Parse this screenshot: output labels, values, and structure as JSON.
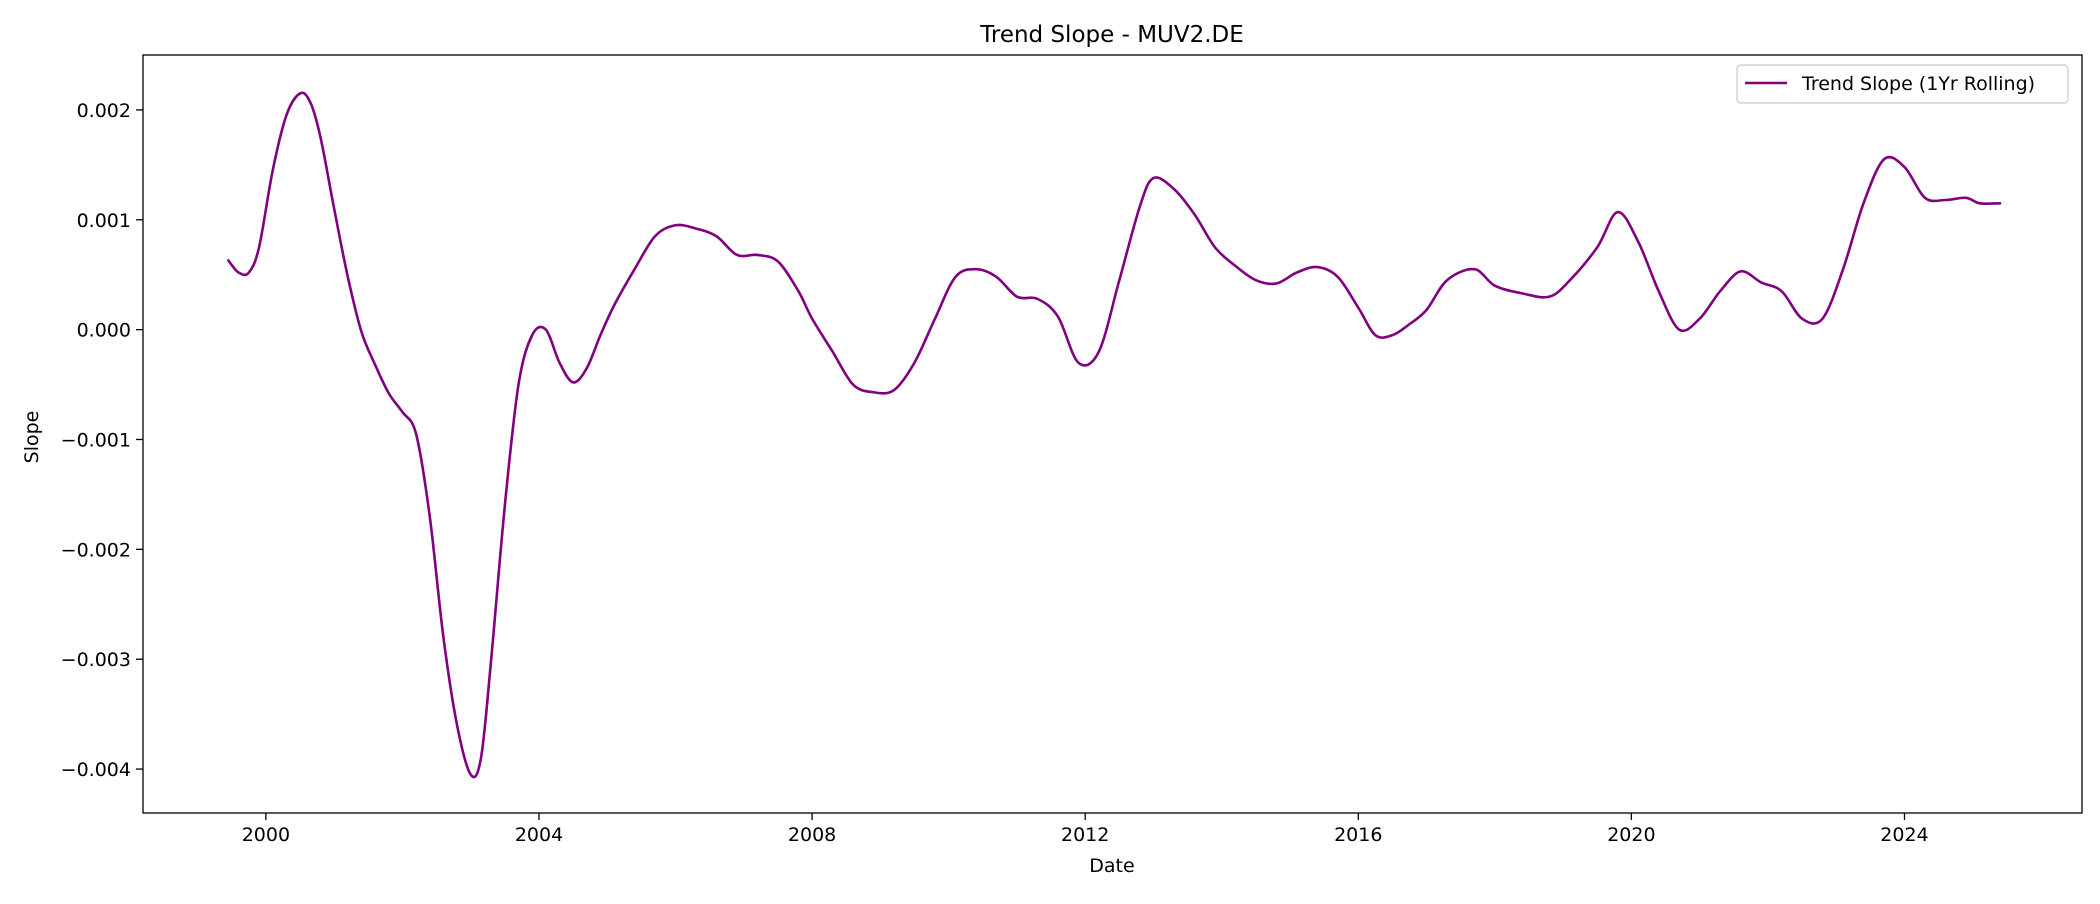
{
  "chart_data": {
    "type": "line",
    "title": "Trend Slope - MUV2.DE",
    "xlabel": "Date",
    "ylabel": "Slope",
    "xlim": [
      1998.2,
      2026.6
    ],
    "ylim": [
      -0.0044,
      0.0025
    ],
    "x_ticks": [
      2000,
      2004,
      2008,
      2012,
      2016,
      2020,
      2024
    ],
    "x_tick_labels": [
      "2000",
      "2004",
      "2008",
      "2012",
      "2016",
      "2020",
      "2024"
    ],
    "y_ticks": [
      0.002,
      0.001,
      0.0,
      -0.001,
      -0.002,
      -0.003,
      -0.004
    ],
    "y_tick_labels": [
      "0.002",
      "0.001",
      "0.000",
      "−0.001",
      "−0.002",
      "−0.003",
      "−0.004"
    ],
    "grid": false,
    "legend_position": "top-right",
    "series": [
      {
        "name": "Trend Slope (1Yr Rolling)",
        "color": "#800080",
        "x": [
          1999.45,
          1999.6,
          1999.75,
          1999.9,
          2000.1,
          2000.3,
          2000.5,
          2000.65,
          2000.8,
          2001.0,
          2001.2,
          2001.4,
          2001.6,
          2001.8,
          2002.0,
          2002.2,
          2002.4,
          2002.6,
          2002.8,
          2003.0,
          2003.15,
          2003.3,
          2003.5,
          2003.7,
          2003.9,
          2004.1,
          2004.3,
          2004.5,
          2004.7,
          2004.9,
          2005.1,
          2005.4,
          2005.7,
          2006.0,
          2006.3,
          2006.6,
          2006.9,
          2007.2,
          2007.5,
          2007.8,
          2008.0,
          2008.3,
          2008.6,
          2008.9,
          2009.2,
          2009.5,
          2009.8,
          2010.1,
          2010.4,
          2010.7,
          2011.0,
          2011.3,
          2011.6,
          2011.9,
          2012.2,
          2012.5,
          2012.8,
          2013.0,
          2013.3,
          2013.6,
          2013.9,
          2014.2,
          2014.5,
          2014.8,
          2015.1,
          2015.4,
          2015.7,
          2016.0,
          2016.25,
          2016.5,
          2016.75,
          2017.0,
          2017.3,
          2017.7,
          2018.0,
          2018.4,
          2018.8,
          2019.1,
          2019.5,
          2019.8,
          2020.1,
          2020.4,
          2020.7,
          2021.0,
          2021.3,
          2021.6,
          2021.9,
          2022.2,
          2022.5,
          2022.8,
          2023.1,
          2023.4,
          2023.7,
          2024.0,
          2024.3,
          2024.6,
          2024.9,
          2025.1,
          2025.4
        ],
        "y": [
          0.00063,
          0.00052,
          0.00052,
          0.00075,
          0.00145,
          0.00195,
          0.00215,
          0.00207,
          0.00175,
          0.0011,
          0.00048,
          -2e-05,
          -0.00032,
          -0.00058,
          -0.00075,
          -0.00095,
          -0.0017,
          -0.0028,
          -0.0036,
          -0.00405,
          -0.0039,
          -0.003,
          -0.0016,
          -0.0005,
          -5e-05,
          0.0,
          -0.0003,
          -0.00048,
          -0.00035,
          -5e-05,
          0.00022,
          0.00055,
          0.00085,
          0.00095,
          0.00092,
          0.00085,
          0.00068,
          0.00068,
          0.00062,
          0.00035,
          0.0001,
          -0.0002,
          -0.0005,
          -0.00057,
          -0.00055,
          -0.0003,
          0.0001,
          0.00048,
          0.00055,
          0.00048,
          0.0003,
          0.00028,
          0.00012,
          -0.0003,
          -0.0002,
          0.00045,
          0.00112,
          0.00138,
          0.00128,
          0.00105,
          0.00075,
          0.00058,
          0.00045,
          0.00042,
          0.00052,
          0.00057,
          0.00048,
          0.0002,
          -5e-05,
          -5e-05,
          5e-05,
          0.00018,
          0.00045,
          0.00055,
          0.0004,
          0.00033,
          0.0003,
          0.00045,
          0.00075,
          0.00107,
          0.0008,
          0.00035,
          0.0,
          0.0001,
          0.00035,
          0.00053,
          0.00043,
          0.00035,
          0.0001,
          0.0001,
          0.00055,
          0.00115,
          0.00155,
          0.00148,
          0.0012,
          0.00118,
          0.0012,
          0.00115,
          0.00115
        ]
      }
    ]
  }
}
